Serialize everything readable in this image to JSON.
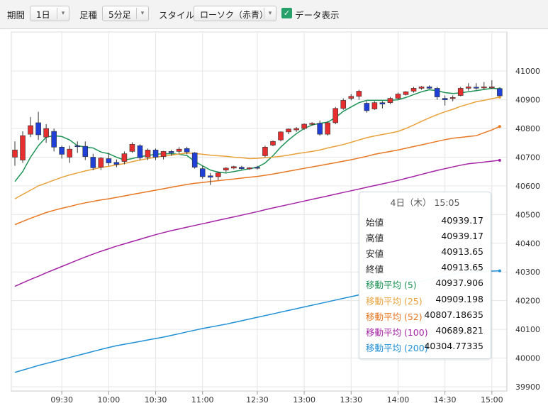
{
  "toolbar": {
    "period_label": "期間",
    "period_value": "1日",
    "interval_label": "足種",
    "interval_value": "5分足",
    "style_label": "スタイル",
    "style_value": "ローソク（赤青）",
    "show_data_label": "データ表示",
    "show_data_checked": true
  },
  "tooltip": {
    "header": "4日（木） 15:05",
    "rows": [
      {
        "label": "始値",
        "value": "40939.17",
        "color": "#222222"
      },
      {
        "label": "高値",
        "value": "40939.17",
        "color": "#222222"
      },
      {
        "label": "安値",
        "value": "40913.65",
        "color": "#222222"
      },
      {
        "label": "終値",
        "value": "40913.65",
        "color": "#222222"
      },
      {
        "label": "移動平均 (5)",
        "value": "40937.906",
        "color": "#1e9356"
      },
      {
        "label": "移動平均 (25)",
        "value": "40909.198",
        "color": "#e9a13a"
      },
      {
        "label": "移動平均 (52)",
        "value": "40807.18635",
        "color": "#e87722"
      },
      {
        "label": "移動平均 (100)",
        "value": "40689.821",
        "color": "#a523a5"
      },
      {
        "label": "移動平均 (200)",
        "value": "40304.77335",
        "color": "#1f8fd6"
      }
    ]
  },
  "chart_data": {
    "type": "candlestick",
    "colors": {
      "up": "#e62e2e",
      "down": "#1f3fd6"
    },
    "y_ticks": [
      41000,
      40900,
      40800,
      40700,
      40600,
      40500,
      40400,
      40300,
      40200,
      40100,
      40000,
      39900
    ],
    "ylim": [
      39890,
      41040
    ],
    "x_ticks": [
      "09:30",
      "10:00",
      "10:30",
      "11:00",
      "12:30",
      "13:00",
      "13:30",
      "14:00",
      "14:30",
      "15:00"
    ],
    "candles": [
      {
        "t": "09:00",
        "o": 40700,
        "h": 40755,
        "l": 40670,
        "c": 40725
      },
      {
        "t": "09:05",
        "o": 40690,
        "h": 40790,
        "l": 40680,
        "c": 40775
      },
      {
        "t": "09:10",
        "o": 40780,
        "h": 40840,
        "l": 40770,
        "c": 40810
      },
      {
        "t": "09:15",
        "o": 40820,
        "h": 40858,
        "l": 40760,
        "c": 40778
      },
      {
        "t": "09:20",
        "o": 40770,
        "h": 40815,
        "l": 40750,
        "c": 40800
      },
      {
        "t": "09:25",
        "o": 40790,
        "h": 40800,
        "l": 40720,
        "c": 40735
      },
      {
        "t": "09:30",
        "o": 40735,
        "h": 40740,
        "l": 40695,
        "c": 40710
      },
      {
        "t": "09:35",
        "o": 40700,
        "h": 40740,
        "l": 40680,
        "c": 40728
      },
      {
        "t": "09:40",
        "o": 40740,
        "h": 40755,
        "l": 40715,
        "c": 40738
      },
      {
        "t": "09:45",
        "o": 40738,
        "h": 40755,
        "l": 40690,
        "c": 40702
      },
      {
        "t": "09:50",
        "o": 40700,
        "h": 40712,
        "l": 40655,
        "c": 40663
      },
      {
        "t": "09:55",
        "o": 40665,
        "h": 40700,
        "l": 40655,
        "c": 40697
      },
      {
        "t": "10:00",
        "o": 40695,
        "h": 40715,
        "l": 40670,
        "c": 40680
      },
      {
        "t": "10:05",
        "o": 40682,
        "h": 40692,
        "l": 40665,
        "c": 40675
      },
      {
        "t": "10:10",
        "o": 40685,
        "h": 40720,
        "l": 40675,
        "c": 40712
      },
      {
        "t": "10:15",
        "o": 40720,
        "h": 40752,
        "l": 40715,
        "c": 40745
      },
      {
        "t": "10:20",
        "o": 40740,
        "h": 40745,
        "l": 40690,
        "c": 40698
      },
      {
        "t": "10:25",
        "o": 40700,
        "h": 40730,
        "l": 40690,
        "c": 40725
      },
      {
        "t": "10:30",
        "o": 40725,
        "h": 40730,
        "l": 40690,
        "c": 40700
      },
      {
        "t": "10:35",
        "o": 40702,
        "h": 40722,
        "l": 40692,
        "c": 40720
      },
      {
        "t": "10:40",
        "o": 40720,
        "h": 40725,
        "l": 40705,
        "c": 40715
      },
      {
        "t": "10:45",
        "o": 40720,
        "h": 40735,
        "l": 40712,
        "c": 40728
      },
      {
        "t": "10:50",
        "o": 40730,
        "h": 40736,
        "l": 40710,
        "c": 40718
      },
      {
        "t": "10:55",
        "o": 40715,
        "h": 40718,
        "l": 40660,
        "c": 40665
      },
      {
        "t": "11:00",
        "o": 40660,
        "h": 40670,
        "l": 40625,
        "c": 40632
      },
      {
        "t": "11:05",
        "o": 40635,
        "h": 40645,
        "l": 40603,
        "c": 40630
      },
      {
        "t": "11:10",
        "o": 40632,
        "h": 40650,
        "l": 40620,
        "c": 40645
      },
      {
        "t": "11:15",
        "o": 40655,
        "h": 40665,
        "l": 40648,
        "c": 40662
      },
      {
        "t": "11:20",
        "o": 40662,
        "h": 40670,
        "l": 40658,
        "c": 40667
      },
      {
        "t": "11:25",
        "o": 40665,
        "h": 40670,
        "l": 40657,
        "c": 40660
      },
      {
        "t": "11:30",
        "o": 40660,
        "h": 40665,
        "l": 40656,
        "c": 40663
      },
      {
        "t": "12:30",
        "o": 40665,
        "h": 40670,
        "l": 40657,
        "c": 40664
      },
      {
        "t": "12:35",
        "o": 40705,
        "h": 40740,
        "l": 40700,
        "c": 40735
      },
      {
        "t": "12:40",
        "o": 40742,
        "h": 40758,
        "l": 40738,
        "c": 40755
      },
      {
        "t": "12:45",
        "o": 40760,
        "h": 40790,
        "l": 40755,
        "c": 40788
      },
      {
        "t": "12:50",
        "o": 40788,
        "h": 40800,
        "l": 40780,
        "c": 40798
      },
      {
        "t": "12:55",
        "o": 40795,
        "h": 40805,
        "l": 40788,
        "c": 40800
      },
      {
        "t": "13:00",
        "o": 40800,
        "h": 40818,
        "l": 40795,
        "c": 40815
      },
      {
        "t": "13:05",
        "o": 40815,
        "h": 40822,
        "l": 40810,
        "c": 40818
      },
      {
        "t": "13:10",
        "o": 40818,
        "h": 40828,
        "l": 40775,
        "c": 40780
      },
      {
        "t": "13:15",
        "o": 40780,
        "h": 40825,
        "l": 40775,
        "c": 40820
      },
      {
        "t": "13:20",
        "o": 40820,
        "h": 40875,
        "l": 40815,
        "c": 40870
      },
      {
        "t": "13:25",
        "o": 40870,
        "h": 40905,
        "l": 40865,
        "c": 40898
      },
      {
        "t": "13:30",
        "o": 40905,
        "h": 40920,
        "l": 40898,
        "c": 40912
      },
      {
        "t": "13:35",
        "o": 40912,
        "h": 40935,
        "l": 40900,
        "c": 40930
      },
      {
        "t": "13:40",
        "o": 40888,
        "h": 40895,
        "l": 40855,
        "c": 40862
      },
      {
        "t": "13:45",
        "o": 40868,
        "h": 40895,
        "l": 40865,
        "c": 40890
      },
      {
        "t": "13:50",
        "o": 40890,
        "h": 40895,
        "l": 40870,
        "c": 40885
      },
      {
        "t": "13:55",
        "o": 40890,
        "h": 40910,
        "l": 40885,
        "c": 40905
      },
      {
        "t": "14:00",
        "o": 40905,
        "h": 40925,
        "l": 40900,
        "c": 40920
      },
      {
        "t": "14:05",
        "o": 40918,
        "h": 40930,
        "l": 40915,
        "c": 40928
      },
      {
        "t": "14:10",
        "o": 40930,
        "h": 40945,
        "l": 40925,
        "c": 40940
      },
      {
        "t": "14:15",
        "o": 40940,
        "h": 40948,
        "l": 40935,
        "c": 40945
      },
      {
        "t": "14:20",
        "o": 40945,
        "h": 40950,
        "l": 40938,
        "c": 40940
      },
      {
        "t": "14:25",
        "o": 40940,
        "h": 40945,
        "l": 40900,
        "c": 40910
      },
      {
        "t": "14:30",
        "o": 40905,
        "h": 40915,
        "l": 40880,
        "c": 40900
      },
      {
        "t": "14:35",
        "o": 40905,
        "h": 40915,
        "l": 40895,
        "c": 40908
      },
      {
        "t": "14:40",
        "o": 40915,
        "h": 40945,
        "l": 40912,
        "c": 40940
      },
      {
        "t": "14:45",
        "o": 40940,
        "h": 40958,
        "l": 40932,
        "c": 40945
      },
      {
        "t": "14:50",
        "o": 40944,
        "h": 40958,
        "l": 40935,
        "c": 40942
      },
      {
        "t": "14:55",
        "o": 40942,
        "h": 40962,
        "l": 40935,
        "c": 40945
      },
      {
        "t": "15:00",
        "o": 40942,
        "h": 40968,
        "l": 40938,
        "c": 40945
      },
      {
        "t": "15:05",
        "o": 40939.17,
        "h": 40939.17,
        "l": 40913.65,
        "c": 40913.65
      }
    ],
    "series": [
      {
        "name": "移動平均 (5)",
        "color": "#1e9356",
        "values": [
          40615,
          40650,
          40700,
          40740,
          40770,
          40775,
          40772,
          40760,
          40740,
          40735,
          40732,
          40718,
          40712,
          40700,
          40690,
          40695,
          40702,
          40706,
          40710,
          40712,
          40712,
          40710,
          40706,
          40685,
          40670,
          40655,
          40648,
          40645,
          40650,
          40655,
          40660,
          40665,
          40680,
          40705,
          40735,
          40760,
          40782,
          40800,
          40812,
          40818,
          40822,
          40838,
          40860,
          40875,
          40890,
          40898,
          40898,
          40898,
          40898,
          40900,
          40908,
          40918,
          40928,
          40935,
          40932,
          40925,
          40922,
          40924,
          40928,
          40932,
          40936,
          40940,
          40938
        ]
      },
      {
        "name": "移動平均 (25)",
        "color": "#e9a13a",
        "values": [
          40555,
          40570,
          40585,
          40600,
          40610,
          40620,
          40630,
          40638,
          40645,
          40652,
          40658,
          40664,
          40668,
          40673,
          40678,
          40684,
          40690,
          40695,
          40700,
          40704,
          40707,
          40711,
          40714,
          40713,
          40710,
          40707,
          40705,
          40703,
          40700,
          40698,
          40695,
          40696,
          40698,
          40700,
          40703,
          40707,
          40712,
          40716,
          40720,
          40725,
          40732,
          40738,
          40744,
          40752,
          40760,
          40768,
          40774,
          40779,
          40784,
          40790,
          40800,
          40812,
          40825,
          40837,
          40848,
          40858,
          40867,
          40877,
          40885,
          40893,
          40898,
          40904,
          40909
        ]
      },
      {
        "name": "移動平均 (52)",
        "color": "#e87722",
        "values": [
          40465,
          40476,
          40487,
          40497,
          40507,
          40515,
          40522,
          40528,
          40535,
          40541,
          40546,
          40551,
          40555,
          40560,
          40565,
          40570,
          40575,
          40580,
          40585,
          40590,
          40595,
          40600,
          40605,
          40609,
          40612,
          40615,
          40618,
          40621,
          40624,
          40627,
          40630,
          40633,
          40637,
          40641,
          40646,
          40651,
          40656,
          40661,
          40666,
          40671,
          40676,
          40681,
          40686,
          40691,
          40697,
          40703,
          40710,
          40715,
          40720,
          40725,
          40731,
          40737,
          40743,
          40749,
          40755,
          40761,
          40766,
          40769,
          40772,
          40775,
          40785,
          40795,
          40807
        ]
      },
      {
        "name": "移動平均 (100)",
        "color": "#a523a5",
        "values": [
          40250,
          40262,
          40274,
          40285,
          40297,
          40308,
          40319,
          40330,
          40341,
          40352,
          40362,
          40372,
          40381,
          40390,
          40398,
          40406,
          40414,
          40422,
          40430,
          40437,
          40444,
          40450,
          40456,
          40462,
          40468,
          40474,
          40480,
          40486,
          40492,
          40498,
          40504,
          40510,
          40517,
          40523,
          40529,
          40535,
          40541,
          40547,
          40553,
          40559,
          40565,
          40571,
          40577,
          40583,
          40589,
          40595,
          40601,
          40607,
          40613,
          40619,
          40626,
          40633,
          40640,
          40647,
          40654,
          40660,
          40666,
          40672,
          40677,
          40680,
          40683,
          40686,
          40689
        ]
      },
      {
        "name": "移動平均 (200)",
        "color": "#1f8fd6",
        "values": [
          39950,
          39958,
          39966,
          39974,
          39981,
          39988,
          39995,
          40002,
          40009,
          40016,
          40023,
          40030,
          40037,
          40043,
          40048,
          40053,
          40058,
          40063,
          40068,
          40073,
          40079,
          40085,
          40091,
          40097,
          40103,
          40108,
          40113,
          40118,
          40124,
          40130,
          40136,
          40142,
          40148,
          40154,
          40160,
          40166,
          40172,
          40178,
          40184,
          40190,
          40196,
          40202,
          40208,
          40214,
          40220,
          40226,
          40232,
          40238,
          40244,
          40250,
          40256,
          40262,
          40268,
          40274,
          40280,
          40286,
          40292,
          40298,
          40300,
          40301,
          40302,
          40303,
          40304
        ]
      }
    ]
  }
}
